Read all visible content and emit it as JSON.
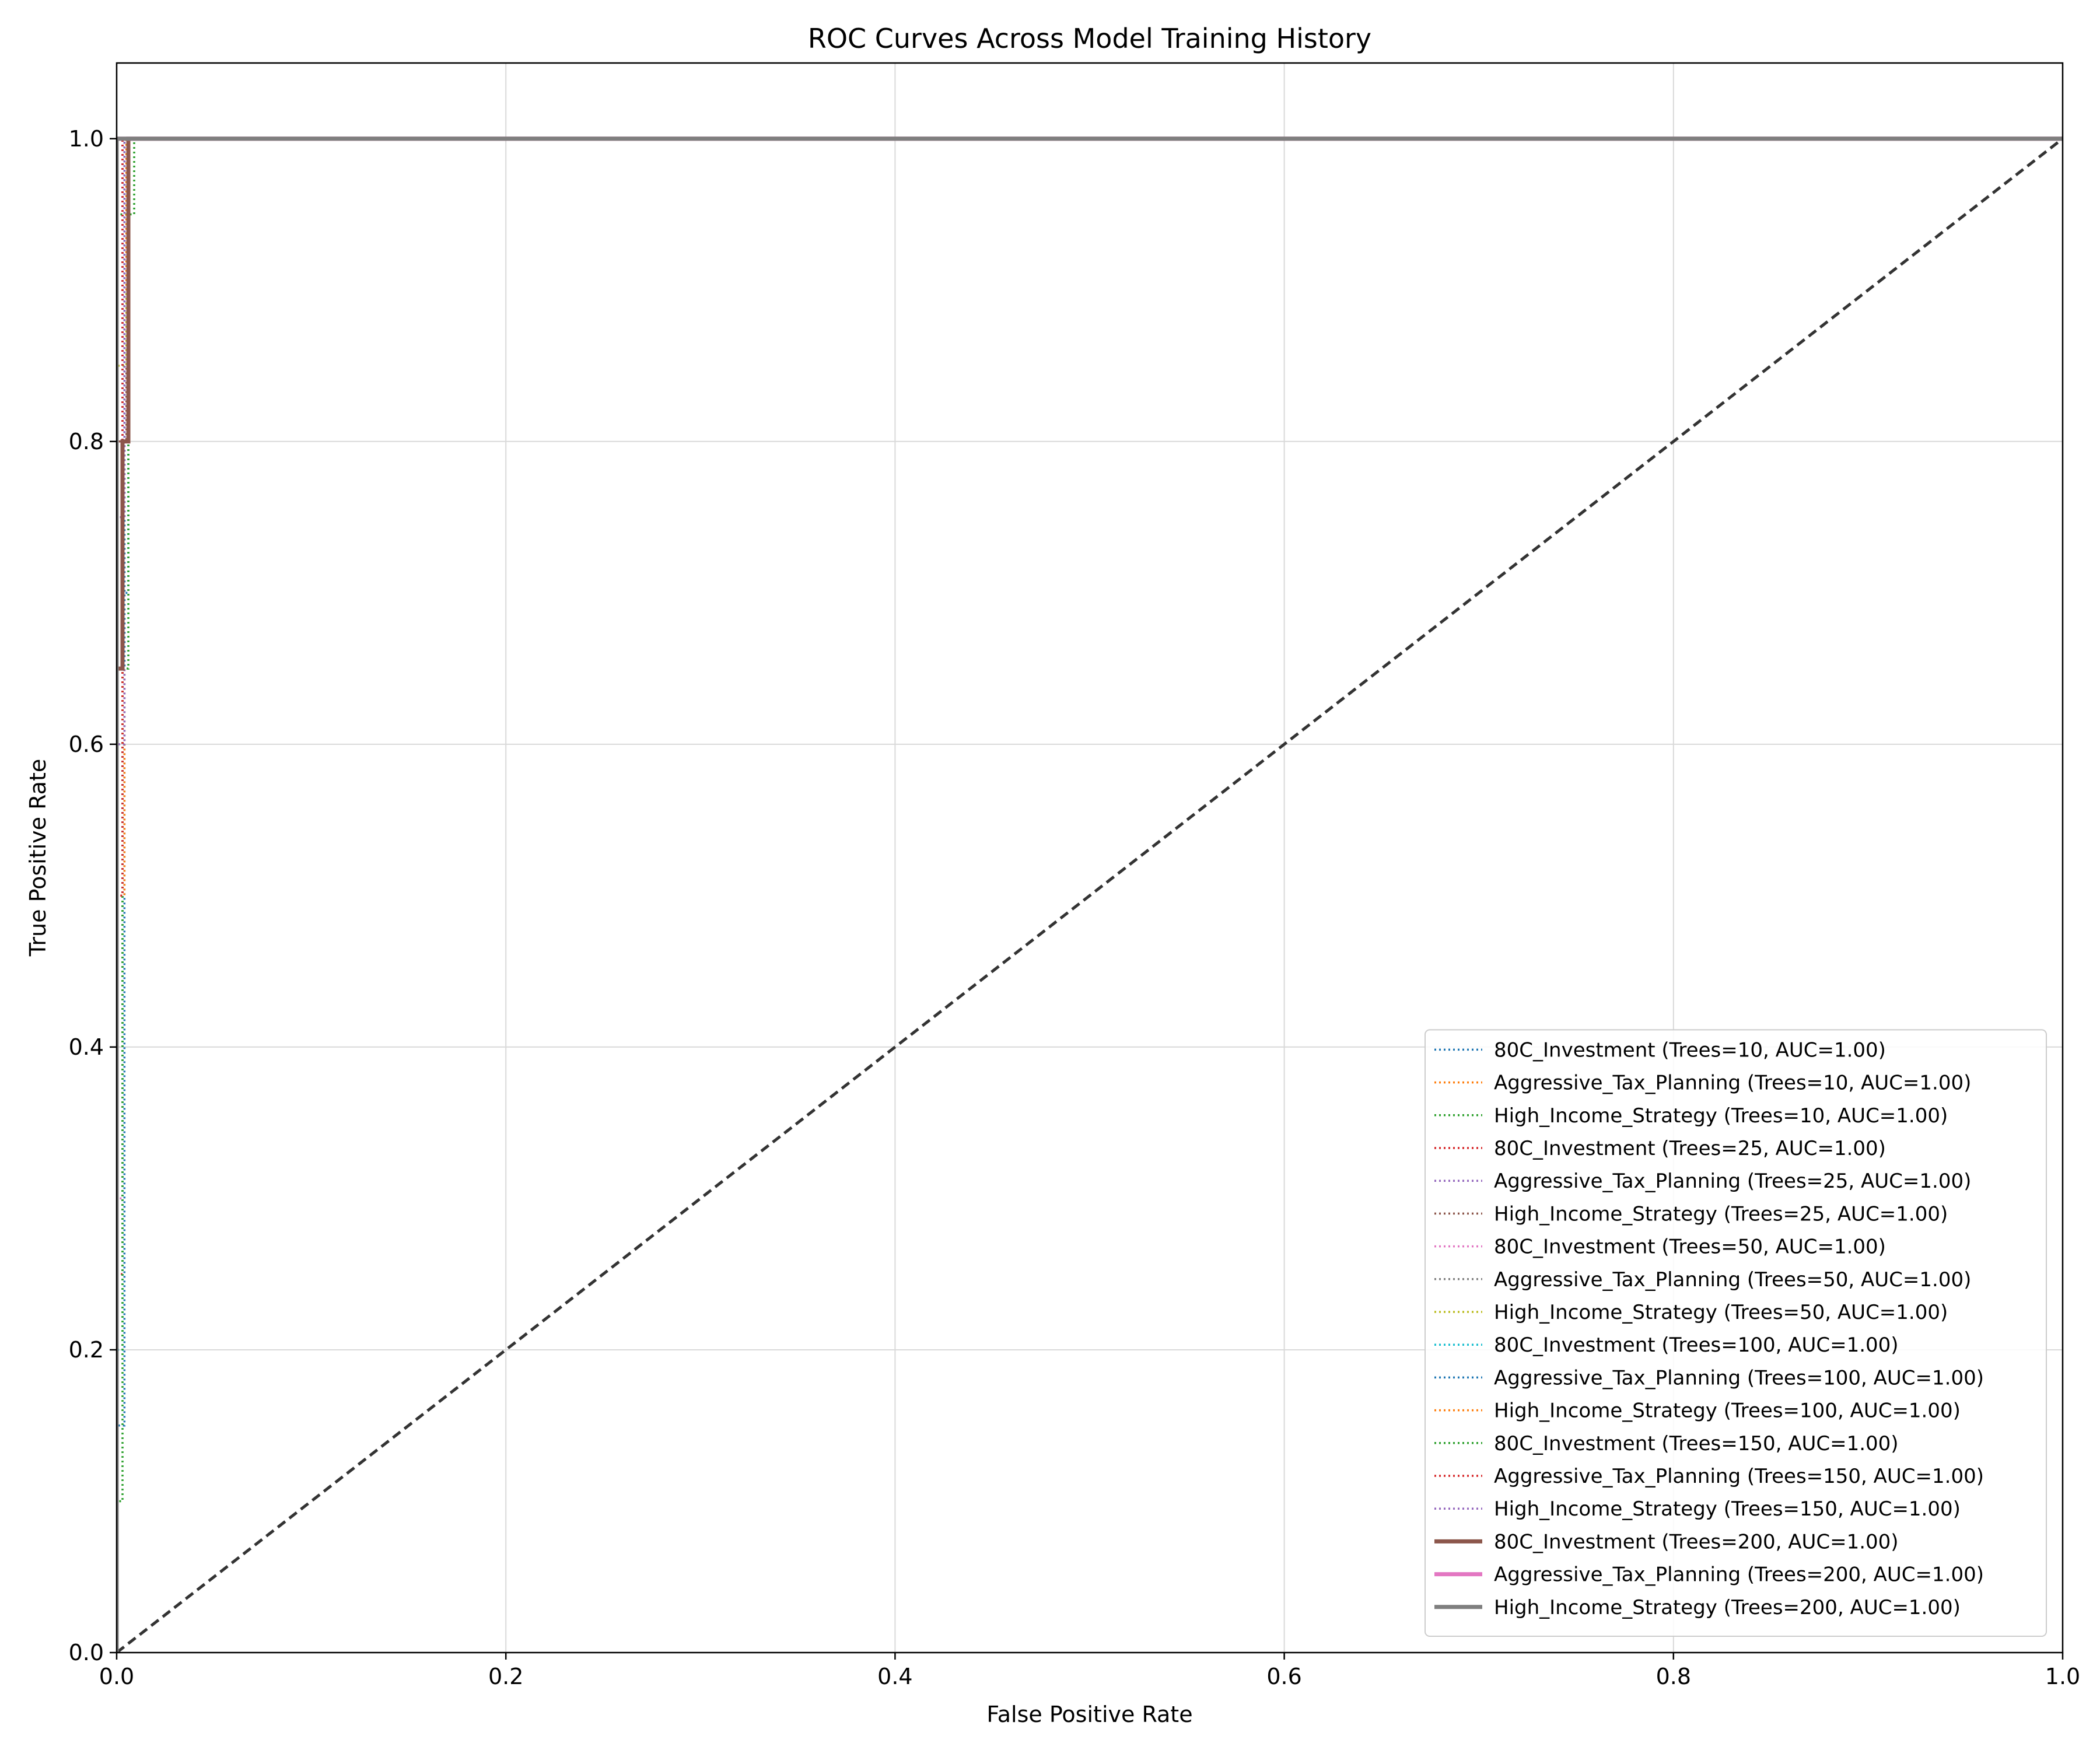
{
  "chart_data": {
    "type": "line",
    "title": "ROC Curves Across Model Training History",
    "xlabel": "False Positive Rate",
    "ylabel": "True Positive Rate",
    "xlim": [
      0.0,
      1.0
    ],
    "ylim": [
      0.0,
      1.05
    ],
    "xticks": [
      0.0,
      0.2,
      0.4,
      0.6,
      0.8,
      1.0
    ],
    "yticks": [
      0.0,
      0.2,
      0.4,
      0.6,
      0.8,
      1.0
    ],
    "xtick_labels": [
      "0.0",
      "0.2",
      "0.4",
      "0.6",
      "0.8",
      "1.0"
    ],
    "ytick_labels": [
      "0.0",
      "0.2",
      "0.4",
      "0.6",
      "0.8",
      "1.0"
    ],
    "grid": true,
    "legend_position": "lower-right",
    "reference_line": {
      "style": "dashed",
      "color": "#333333",
      "x": [
        0.0,
        1.0
      ],
      "y": [
        0.0,
        1.0
      ]
    },
    "series": [
      {
        "name": "80C_Investment (Trees=10, AUC=1.00)",
        "color": "#1f77b4",
        "style": "dotted",
        "x": [
          0.0,
          0.0,
          0.004,
          0.004,
          0.006,
          0.006,
          1.0
        ],
        "y": [
          0.0,
          0.15,
          0.15,
          0.7,
          0.7,
          1.0,
          1.0
        ]
      },
      {
        "name": "Aggressive_Tax_Planning (Trees=10, AUC=1.00)",
        "color": "#ff7f0e",
        "style": "dotted",
        "x": [
          0.0,
          0.0,
          0.004,
          0.004,
          1.0
        ],
        "y": [
          0.0,
          0.5,
          0.5,
          1.0,
          1.0
        ]
      },
      {
        "name": "High_Income_Strategy (Trees=10, AUC=1.00)",
        "color": "#2ca02c",
        "style": "dotted",
        "x": [
          0.0,
          0.0,
          0.009,
          0.009,
          1.0
        ],
        "y": [
          0.0,
          0.95,
          0.95,
          1.0,
          1.0
        ]
      },
      {
        "name": "80C_Investment (Trees=25, AUC=1.00)",
        "color": "#d62728",
        "style": "dotted",
        "x": [
          0.0,
          0.0,
          0.003,
          0.003,
          1.0
        ],
        "y": [
          0.0,
          0.25,
          0.25,
          1.0,
          1.0
        ]
      },
      {
        "name": "Aggressive_Tax_Planning (Trees=25, AUC=1.00)",
        "color": "#9467bd",
        "style": "dotted",
        "x": [
          0.0,
          0.0,
          0.004,
          0.004,
          1.0
        ],
        "y": [
          0.0,
          0.6,
          0.6,
          1.0,
          1.0
        ]
      },
      {
        "name": "High_Income_Strategy (Trees=25, AUC=1.00)",
        "color": "#8c564b",
        "style": "dotted",
        "x": [
          0.0,
          0.0,
          0.005,
          0.005,
          1.0
        ],
        "y": [
          0.0,
          0.8,
          0.8,
          1.0,
          1.0
        ]
      },
      {
        "name": "80C_Investment (Trees=50, AUC=1.00)",
        "color": "#e377c2",
        "style": "dotted",
        "x": [
          0.0,
          0.0,
          0.003,
          0.003,
          1.0
        ],
        "y": [
          0.0,
          0.3,
          0.3,
          1.0,
          1.0
        ]
      },
      {
        "name": "Aggressive_Tax_Planning (Trees=50, AUC=1.00)",
        "color": "#7f7f7f",
        "style": "dotted",
        "x": [
          0.0,
          0.0,
          0.004,
          0.004,
          1.0
        ],
        "y": [
          0.0,
          0.7,
          0.7,
          1.0,
          1.0
        ]
      },
      {
        "name": "High_Income_Strategy (Trees=50, AUC=1.00)",
        "color": "#bcbd22",
        "style": "dotted",
        "x": [
          0.0,
          0.0,
          0.005,
          0.005,
          1.0
        ],
        "y": [
          0.0,
          0.85,
          0.85,
          1.0,
          1.0
        ]
      },
      {
        "name": "80C_Investment (Trees=100, AUC=1.00)",
        "color": "#17becf",
        "style": "dotted",
        "x": [
          0.0,
          0.0,
          0.003,
          0.003,
          1.0
        ],
        "y": [
          0.0,
          0.2,
          0.2,
          1.0,
          1.0
        ]
      },
      {
        "name": "Aggressive_Tax_Planning (Trees=100, AUC=1.00)",
        "color": "#1f77b4",
        "style": "dotted",
        "x": [
          0.0,
          0.0,
          0.004,
          0.004,
          1.0
        ],
        "y": [
          0.0,
          0.65,
          0.65,
          1.0,
          1.0
        ]
      },
      {
        "name": "High_Income_Strategy (Trees=100, AUC=1.00)",
        "color": "#ff7f0e",
        "style": "dotted",
        "x": [
          0.0,
          0.0,
          0.005,
          0.005,
          1.0
        ],
        "y": [
          0.0,
          0.9,
          0.9,
          1.0,
          1.0
        ]
      },
      {
        "name": "80C_Investment (Trees=150, AUC=1.00)",
        "color": "#2ca02c",
        "style": "dotted",
        "x": [
          0.0,
          0.0,
          0.003,
          0.003,
          0.006,
          0.006,
          1.0
        ],
        "y": [
          0.0,
          0.1,
          0.1,
          0.65,
          0.65,
          1.0,
          1.0
        ]
      },
      {
        "name": "Aggressive_Tax_Planning (Trees=150, AUC=1.00)",
        "color": "#d62728",
        "style": "dotted",
        "x": [
          0.0,
          0.0,
          0.003,
          0.003,
          1.0
        ],
        "y": [
          0.0,
          0.5,
          0.5,
          1.0,
          1.0
        ]
      },
      {
        "name": "High_Income_Strategy (Trees=150, AUC=1.00)",
        "color": "#9467bd",
        "style": "dotted",
        "x": [
          0.0,
          0.0,
          0.004,
          0.004,
          1.0
        ],
        "y": [
          0.0,
          0.75,
          0.75,
          1.0,
          1.0
        ]
      },
      {
        "name": "80C_Investment (Trees=200, AUC=1.00)",
        "color": "#8c564b",
        "style": "solid",
        "x": [
          0.0,
          0.0,
          0.003,
          0.003,
          0.006,
          0.006,
          1.0
        ],
        "y": [
          0.0,
          0.65,
          0.65,
          0.8,
          0.8,
          1.0,
          1.0
        ]
      },
      {
        "name": "Aggressive_Tax_Planning (Trees=200, AUC=1.00)",
        "color": "#e377c2",
        "style": "solid",
        "x": [
          0.0,
          0.0,
          1.0
        ],
        "y": [
          0.0,
          1.0,
          1.0
        ]
      },
      {
        "name": "High_Income_Strategy (Trees=200, AUC=1.00)",
        "color": "#7f7f7f",
        "style": "solid",
        "x": [
          0.0,
          0.0,
          1.0
        ],
        "y": [
          0.0,
          1.0,
          1.0
        ]
      }
    ]
  }
}
